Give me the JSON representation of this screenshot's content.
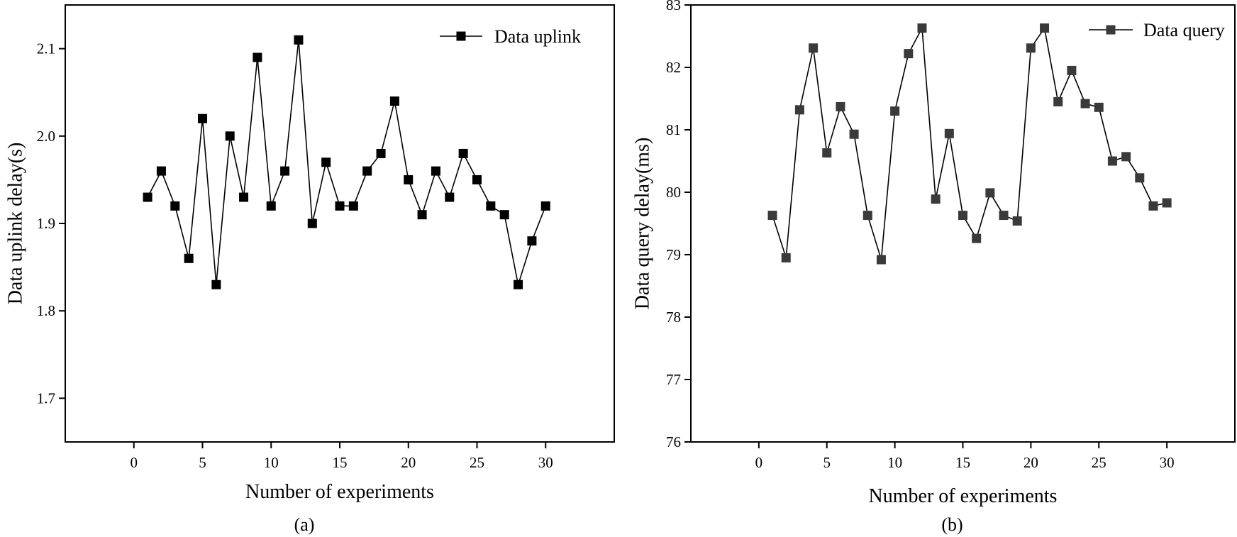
{
  "chart_data": [
    {
      "type": "line",
      "panel_label": "(a)",
      "xlabel": "Number of experiments",
      "ylabel": "Data uplink delay(s)",
      "xlim": [
        -5,
        35
      ],
      "ylim": [
        1.65,
        2.15
      ],
      "xticks": [
        0,
        5,
        10,
        15,
        20,
        25,
        30
      ],
      "yticks": [
        1.7,
        1.8,
        1.9,
        2.0,
        2.1
      ],
      "xtick_labels": [
        "0",
        "5",
        "10",
        "15",
        "20",
        "25",
        "30"
      ],
      "ytick_labels": [
        "1.7",
        "1.8",
        "1.9",
        "2.0",
        "2.1"
      ],
      "legend_position": "top-right",
      "series": [
        {
          "name": "Data uplink",
          "color": "#000000",
          "marker": "square",
          "x": [
            1,
            2,
            3,
            4,
            5,
            6,
            7,
            8,
            9,
            10,
            11,
            12,
            13,
            14,
            15,
            16,
            17,
            18,
            19,
            20,
            21,
            22,
            23,
            24,
            25,
            26,
            27,
            28,
            29,
            30
          ],
          "values": [
            1.93,
            1.96,
            1.92,
            1.86,
            2.02,
            1.83,
            2.0,
            1.93,
            2.09,
            1.92,
            1.96,
            2.11,
            1.9,
            1.97,
            1.92,
            1.92,
            1.96,
            1.98,
            2.04,
            1.95,
            1.91,
            1.96,
            1.93,
            1.98,
            1.95,
            1.92,
            1.91,
            1.83,
            1.88,
            1.92
          ]
        }
      ]
    },
    {
      "type": "line",
      "panel_label": "(b)",
      "xlabel": "Number of experiments",
      "ylabel": "Data query delay(ms)",
      "xlim": [
        -5,
        35
      ],
      "ylim": [
        76,
        83
      ],
      "xticks": [
        0,
        5,
        10,
        15,
        20,
        25,
        30
      ],
      "yticks": [
        76,
        77,
        78,
        79,
        80,
        81,
        82,
        83
      ],
      "xtick_labels": [
        "0",
        "5",
        "10",
        "15",
        "20",
        "25",
        "30"
      ],
      "ytick_labels": [
        "76",
        "77",
        "78",
        "79",
        "80",
        "81",
        "82",
        "83"
      ],
      "legend_position": "top-right",
      "series": [
        {
          "name": "Data query",
          "color": "#3a3a3a",
          "marker": "square",
          "x": [
            1,
            2,
            3,
            4,
            5,
            6,
            7,
            8,
            9,
            10,
            11,
            12,
            13,
            14,
            15,
            16,
            17,
            18,
            19,
            20,
            21,
            22,
            23,
            24,
            25,
            26,
            27,
            28,
            29,
            30
          ],
          "values": [
            79.63,
            78.95,
            81.32,
            82.31,
            80.63,
            81.37,
            80.93,
            79.63,
            78.92,
            81.3,
            82.22,
            82.63,
            79.89,
            80.94,
            79.63,
            79.26,
            79.99,
            79.63,
            79.54,
            82.31,
            82.63,
            81.45,
            81.95,
            81.42,
            81.36,
            80.5,
            80.57,
            80.23,
            79.78,
            79.83
          ]
        }
      ]
    }
  ]
}
